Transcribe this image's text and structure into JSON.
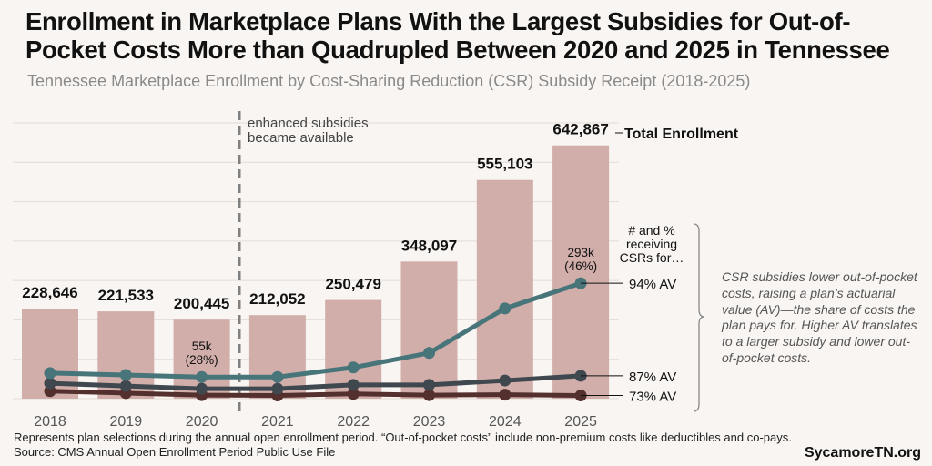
{
  "title": "Enrollment in Marketplace Plans With the Largest Subsidies for Out-of-Pocket Costs More than Quadrupled Between 2020 and 2025 in Tennessee",
  "subtitle": "Tennessee Marketplace Enrollment by Cost-Sharing Reduction (CSR) Subsidy Receipt (2018-2025)",
  "footnote": "Represents plan selections during the annual open enrollment period. “Out-of-pocket costs” include non-premium costs like deductibles and co-pays.",
  "source": "Source: CMS Annual Open Enrollment Period Public Use File",
  "brand": "SycamoreTN.org",
  "note": "CSR subsidies lower out-of-pocket costs, raising a plan’s actuarial value (AV)—the share of costs the plan pays for. Higher AV translates to a larger subsidy and lower out-of-pocket costs.",
  "chart_data": {
    "type": "bar",
    "categories": [
      "2018",
      "2019",
      "2020",
      "2021",
      "2022",
      "2023",
      "2024",
      "2025"
    ],
    "ylim": [
      0,
      700000
    ],
    "grid": true,
    "bars": {
      "name": "Total Enrollment",
      "values": [
        228646,
        221533,
        200445,
        212052,
        250479,
        348097,
        555103,
        642867
      ],
      "labels": [
        "228,646",
        "221,533",
        "200,445",
        "212,052",
        "250,479",
        "348,097",
        "555,103",
        "642,867"
      ],
      "color": "#d1aeaa"
    },
    "series_heading": "# and % receiving CSRs for…",
    "series": [
      {
        "name": "94% AV",
        "color": "#47757a",
        "values": [
          65000,
          60000,
          55000,
          55000,
          79000,
          116000,
          229000,
          293000
        ]
      },
      {
        "name": "87% AV",
        "color": "#3e484e",
        "values": [
          39000,
          32000,
          25000,
          25000,
          35000,
          35000,
          46000,
          58000
        ]
      },
      {
        "name": "73% AV",
        "color": "#53302e",
        "values": [
          19000,
          14000,
          9000,
          8000,
          12000,
          9000,
          10000,
          8000
        ]
      }
    ],
    "annotations": [
      {
        "text_lines": [
          "55k",
          "(28%)"
        ],
        "category": "2020"
      },
      {
        "text_lines": [
          "293k",
          "(46%)"
        ],
        "category": "2025"
      },
      {
        "text_lines": [
          "enhanced subsidies",
          "became available"
        ],
        "between": [
          "2020",
          "2021"
        ]
      }
    ]
  },
  "colors": {
    "background": "#f9f5f2",
    "grid": "#e2dcd8",
    "divider": "#808080"
  }
}
